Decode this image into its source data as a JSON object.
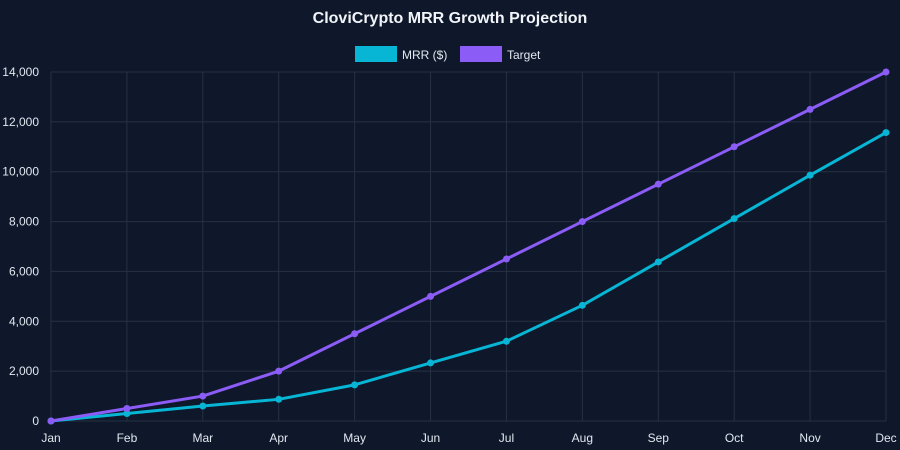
{
  "chart_data": {
    "type": "line",
    "title": "CloviCrypto MRR Growth Projection",
    "xlabel": "",
    "ylabel": "",
    "categories": [
      "Jan",
      "Feb",
      "Mar",
      "Apr",
      "May",
      "Jun",
      "Jul",
      "Aug",
      "Sep",
      "Oct",
      "Nov",
      "Dec"
    ],
    "ylim": [
      0,
      14000
    ],
    "y_ticks": [
      0,
      2000,
      4000,
      6000,
      8000,
      10000,
      12000,
      14000
    ],
    "y_tick_labels": [
      "0",
      "2,000",
      "4,000",
      "6,000",
      "8,000",
      "10,000",
      "12,000",
      "14,000"
    ],
    "grid": true,
    "legend_position": "top-center",
    "series": [
      {
        "name": "MRR ($)",
        "color": "#06b6d4",
        "values": [
          0,
          300,
          600,
          870,
          1450,
          2330,
          3200,
          4640,
          6380,
          8120,
          9860,
          11570
        ]
      },
      {
        "name": "Target",
        "color": "#8b5cf6",
        "values": [
          0,
          500,
          1000,
          2000,
          3500,
          5000,
          6500,
          8000,
          9500,
          11000,
          12500,
          14000
        ]
      }
    ]
  }
}
